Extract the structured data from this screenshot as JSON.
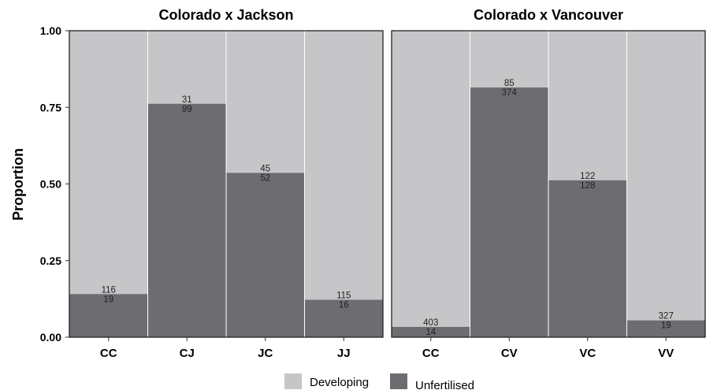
{
  "chart_data": {
    "type": "bar",
    "ylabel": "Proportion",
    "ylim": [
      0,
      1
    ],
    "yticks": [
      "0.00",
      "0.25",
      "0.50",
      "0.75",
      "1.00"
    ],
    "legend": {
      "position": "bottom",
      "items": [
        {
          "name": "Developing",
          "color": "#c6c6c8"
        },
        {
          "name": "Unfertilised",
          "color": "#6d6d71"
        }
      ]
    },
    "panels": [
      {
        "title": "Colorado x Jackson",
        "categories": [
          "CC",
          "CJ",
          "JC",
          "JJ"
        ],
        "developing_counts": [
          "116",
          "31",
          "45",
          "115"
        ],
        "unfertilised_counts": [
          "19",
          "99",
          "52",
          "16"
        ],
        "unfertilised_proportion": [
          0.1407,
          0.7615,
          0.5361,
          0.1221
        ]
      },
      {
        "title": "Colorado x Vancouver",
        "categories": [
          "CC",
          "CV",
          "VC",
          "VV"
        ],
        "developing_counts": [
          "403",
          "85",
          "122",
          "327"
        ],
        "unfertilised_counts": [
          "14",
          "374",
          "128",
          "19"
        ],
        "unfertilised_proportion": [
          0.0336,
          0.8148,
          0.512,
          0.0549
        ]
      }
    ]
  }
}
